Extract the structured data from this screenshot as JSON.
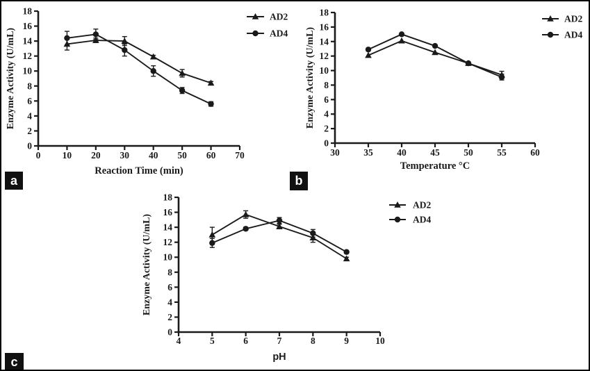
{
  "figure": {
    "background": "#ffffff",
    "border_color": "#000000",
    "ink_color": "#1a1a1a"
  },
  "panels": [
    {
      "label": "a"
    },
    {
      "label": "b"
    },
    {
      "label": "c"
    }
  ],
  "chart_data": [
    {
      "type": "line",
      "panel": "a",
      "title": "",
      "xlabel": "Reaction Time (min)",
      "ylabel": "Enzyme Activity (U/mL)",
      "xlim": [
        0,
        70
      ],
      "ylim": [
        0,
        18
      ],
      "xticks": [
        0,
        10,
        20,
        30,
        40,
        50,
        60,
        70
      ],
      "yticks": [
        0,
        2,
        4,
        6,
        8,
        10,
        12,
        14,
        16,
        18
      ],
      "x": [
        10,
        20,
        30,
        40,
        50,
        60
      ],
      "series": [
        {
          "name": "AD2",
          "marker": "triangle",
          "color": "#1a1a1a",
          "values": [
            13.6,
            14.1,
            14.0,
            11.9,
            9.7,
            8.4
          ],
          "errors": [
            0.8,
            0.3,
            0.6,
            0.2,
            0.5,
            0.2
          ]
        },
        {
          "name": "AD4",
          "marker": "circle",
          "color": "#1a1a1a",
          "values": [
            14.4,
            14.9,
            12.8,
            10.0,
            7.4,
            5.6
          ],
          "errors": [
            0.9,
            0.7,
            0.8,
            0.7,
            0.4,
            0.3
          ]
        }
      ],
      "legend_position": "top-right",
      "grid": false
    },
    {
      "type": "line",
      "panel": "b",
      "title": "",
      "xlabel": "Temperature °C",
      "ylabel": "Enzyme Activity (U/mL)",
      "xlim": [
        30,
        60
      ],
      "ylim": [
        0,
        18
      ],
      "xticks": [
        30,
        35,
        40,
        45,
        50,
        55,
        60
      ],
      "yticks": [
        0,
        2,
        4,
        6,
        8,
        10,
        12,
        14,
        16,
        18
      ],
      "x": [
        35,
        40,
        45,
        50,
        55
      ],
      "series": [
        {
          "name": "AD2",
          "marker": "triangle",
          "color": "#1a1a1a",
          "values": [
            12.1,
            14.1,
            12.5,
            11.0,
            9.4
          ],
          "errors": [
            0,
            0,
            0,
            0,
            0.5
          ]
        },
        {
          "name": "AD4",
          "marker": "circle",
          "color": "#1a1a1a",
          "values": [
            12.9,
            15.0,
            13.4,
            11.0,
            9.1
          ],
          "errors": [
            0,
            0,
            0,
            0,
            0.4
          ]
        }
      ],
      "legend_position": "top-right",
      "grid": false
    },
    {
      "type": "line",
      "panel": "c",
      "title": "",
      "xlabel": "pH",
      "xlabel_style": "sans",
      "ylabel": "Enzyme Activity (U/mL)",
      "xlim": [
        4,
        10
      ],
      "ylim": [
        0,
        18
      ],
      "xticks": [
        4,
        5,
        6,
        7,
        8,
        9,
        10
      ],
      "yticks": [
        0,
        2,
        4,
        6,
        8,
        10,
        12,
        14,
        16,
        18
      ],
      "x": [
        5,
        6,
        7,
        8,
        9
      ],
      "series": [
        {
          "name": "AD2",
          "marker": "triangle",
          "color": "#1a1a1a",
          "values": [
            13.0,
            15.7,
            14.1,
            12.6,
            9.8
          ],
          "errors": [
            1.0,
            0.5,
            0.3,
            0.6,
            0.2
          ]
        },
        {
          "name": "AD4",
          "marker": "circle",
          "color": "#1a1a1a",
          "values": [
            11.9,
            13.8,
            14.9,
            13.2,
            10.7
          ],
          "errors": [
            0.6,
            0.2,
            0.4,
            0.5,
            0.2
          ]
        }
      ],
      "legend_position": "top-right",
      "grid": false
    }
  ]
}
